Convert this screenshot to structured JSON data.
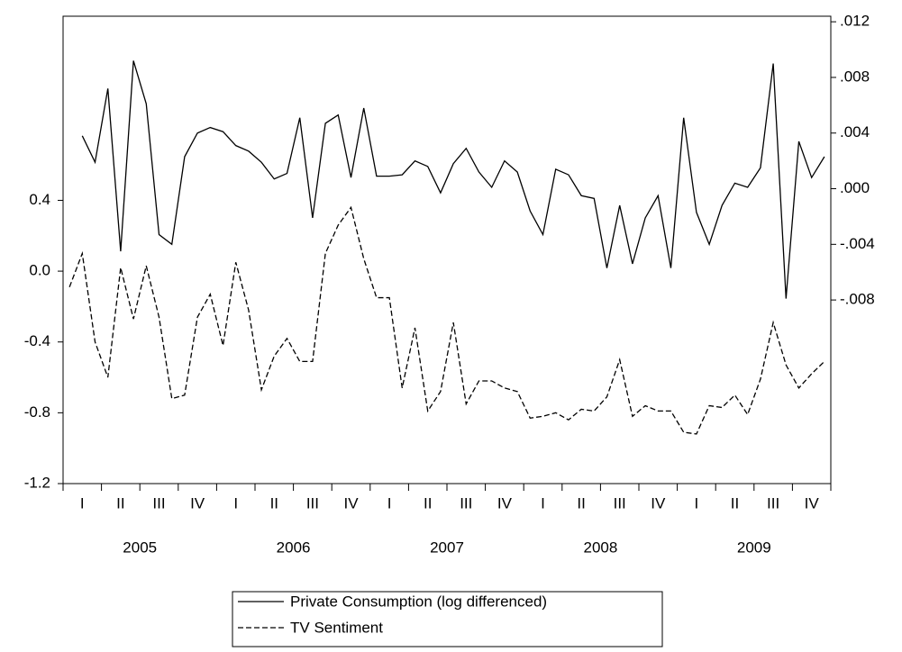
{
  "chart_data": {
    "type": "line",
    "categories": [
      null,
      "I",
      null,
      null,
      "II",
      null,
      null,
      "III",
      null,
      null,
      "IV",
      null,
      null,
      "I",
      null,
      null,
      "II",
      null,
      null,
      "III",
      null,
      null,
      "IV",
      null,
      null,
      "I",
      null,
      null,
      "II",
      null,
      null,
      "III",
      null,
      null,
      "IV",
      null,
      null,
      "I",
      null,
      null,
      "II",
      null,
      null,
      "III",
      null,
      null,
      "IV",
      null,
      null,
      "I",
      null,
      null,
      "II",
      null,
      null,
      "III",
      null,
      null,
      "IV",
      null
    ],
    "x_groups": [
      "2005",
      "2006",
      "2007",
      "2008",
      "2009"
    ],
    "ylim": [
      -1.2,
      1.44
    ],
    "yticks": [
      -1.2,
      -0.8,
      -0.4,
      {
        "value": 0,
        "label": "0.0"
      },
      0.4
    ],
    "y2lim": [
      -0.0212,
      0.0124
    ],
    "y2ticks": [
      {
        "value": -0.008,
        "label": "-.008"
      },
      {
        "value": -0.004,
        "label": "-.004"
      },
      {
        "value": 0,
        "label": ".000"
      },
      {
        "value": 0.004,
        "label": ".004"
      },
      {
        "value": 0.008,
        "label": ".008"
      },
      {
        "value": 0.012,
        "label": ".012"
      }
    ],
    "series": [
      {
        "name": "Private Consumption (log differenced)",
        "color": "#000000",
        "line_style": "solid",
        "axis": "y2",
        "values": [
          null,
          0.0038,
          0.0019,
          0.0072,
          -0.0045,
          0.0092,
          0.0061,
          -0.0033,
          -0.004,
          0.0023,
          0.004,
          0.0044,
          0.0041,
          0.0031,
          0.0027,
          0.0019,
          0.0007,
          0.0011,
          0.0051,
          -0.0021,
          0.0047,
          0.0053,
          0.0008,
          0.0058,
          0.0009,
          0.0009,
          0.001,
          0.002,
          0.0016,
          -0.0003,
          0.0018,
          0.0029,
          0.0012,
          0.0001,
          0.002,
          0.0012,
          -0.0016,
          -0.0033,
          0.0014,
          0.001,
          -0.0005,
          -0.0007,
          -0.0057,
          -0.0012,
          -0.0054,
          -0.0021,
          -0.0005,
          -0.0057,
          0.0051,
          -0.0017,
          -0.004,
          -0.0012,
          0.0004,
          0.0001,
          0.0015,
          0.009,
          -0.0079,
          0.0034,
          0.0008,
          0.0023
        ]
      },
      {
        "name": "TV Sentiment",
        "color": "#000000",
        "line_style": "dashed",
        "values": [
          -0.09,
          0.1,
          -0.4,
          -0.6,
          0.02,
          -0.27,
          0.03,
          -0.26,
          -0.72,
          -0.7,
          -0.26,
          -0.13,
          -0.42,
          0.05,
          -0.22,
          -0.67,
          -0.48,
          -0.38,
          -0.51,
          -0.51,
          0.1,
          0.26,
          0.36,
          0.07,
          -0.15,
          -0.15,
          -0.66,
          -0.32,
          -0.79,
          -0.68,
          -0.29,
          -0.75,
          -0.62,
          -0.62,
          -0.66,
          -0.68,
          -0.83,
          -0.82,
          -0.8,
          -0.84,
          -0.78,
          -0.79,
          -0.71,
          -0.5,
          -0.82,
          -0.76,
          -0.79,
          -0.79,
          -0.91,
          -0.92,
          -0.76,
          -0.77,
          -0.7,
          -0.81,
          -0.61,
          -0.29,
          -0.53,
          -0.66,
          -0.58,
          -0.51
        ]
      }
    ]
  }
}
